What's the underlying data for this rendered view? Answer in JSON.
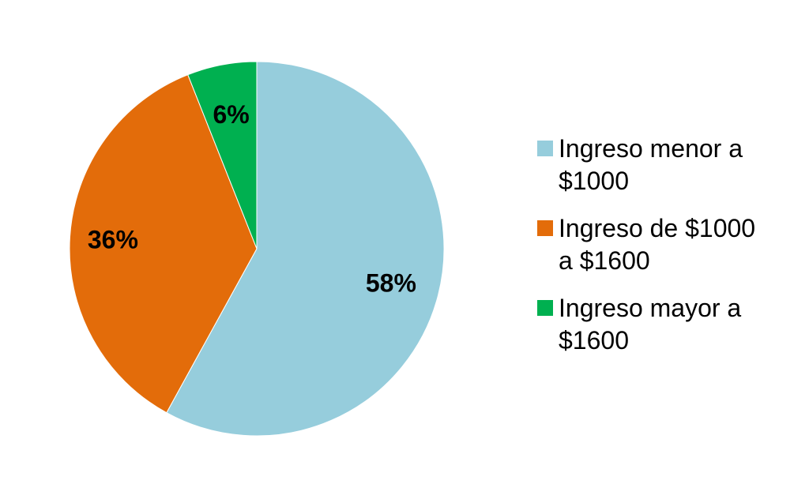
{
  "chart_data": {
    "type": "pie",
    "title": "",
    "categories": [
      "Ingreso menor a $1000",
      "Ingreso de $1000 a $1600",
      "Ingreso mayor a $1600"
    ],
    "values": [
      58,
      36,
      6
    ],
    "data_labels": [
      "58%",
      "36%",
      "6%"
    ],
    "legend_labels": [
      "Ingreso menor a\n$1000",
      "Ingreso de $1000\na $1600",
      "Ingreso mayor a\n$1600"
    ],
    "colors": [
      "#96CDDC",
      "#E36C0A",
      "#00B050"
    ],
    "legend_position": "right"
  }
}
